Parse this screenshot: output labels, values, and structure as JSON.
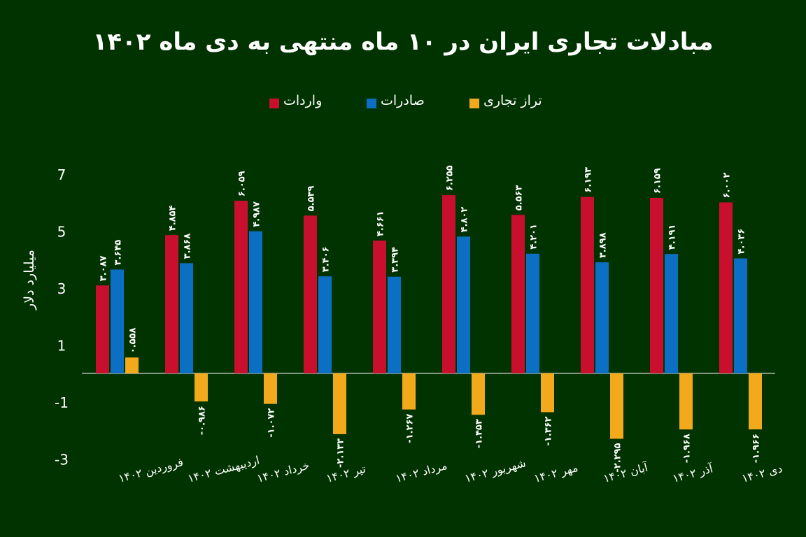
{
  "colors": {
    "background": "#013300",
    "imports": "#c8102e",
    "exports": "#0b6fc4",
    "balance": "#f2a91c",
    "text": "#ffffff"
  },
  "chart_data": {
    "type": "bar",
    "title": "مبادلات تجاری ایران در ۱۰ ماه منتهی به دی ماه ۱۴۰۲",
    "ylabel": "میلیارد دلار",
    "xlabel": "",
    "ylim": [
      -3,
      7
    ],
    "yticks": [
      "7",
      "5",
      "3",
      "1",
      "-1",
      "-3"
    ],
    "ytick_values": [
      7,
      5,
      3,
      1,
      -1,
      -3
    ],
    "legend_position": "top-center",
    "grid": false,
    "categories": [
      "فروردین ۱۴۰۲",
      "اردیبهشت ۱۴۰۲",
      "خرداد ۱۴۰۲",
      "تیر ۱۴۰۲",
      "مرداد ۱۴۰۲",
      "شهریور ۱۴۰۲",
      "مهر ۱۴۰۲",
      "آبان ۱۴۰۲",
      "آذر ۱۴۰۲",
      "دی ۱۴۰۲"
    ],
    "series": [
      {
        "name": "واردات",
        "key": "imports",
        "values": [
          3.087,
          4.854,
          6.059,
          5.539,
          4.661,
          6.255,
          5.563,
          6.193,
          6.159,
          6.002
        ],
        "labels": [
          "۳.۰۸۷",
          "۴.۸۵۴",
          "۶.۰۵۹",
          "۵.۵۳۹",
          "۴.۶۶۱",
          "۶.۲۵۵",
          "۵.۵۶۳",
          "۶.۱۹۳",
          "۶.۱۵۹",
          "۶.۰۰۲"
        ]
      },
      {
        "name": "صادرات",
        "key": "exports",
        "values": [
          3.645,
          3.868,
          4.987,
          3.406,
          3.394,
          4.802,
          4.201,
          3.898,
          4.191,
          4.036
        ],
        "labels": [
          "۳.۶۴۵",
          "۳.۸۶۸",
          "۴.۹۸۷",
          "۳.۴۰۶",
          "۳.۳۹۴",
          "۴.۸۰۲",
          "۴.۲۰۱",
          "۳.۸۹۸",
          "۴.۱۹۱",
          "۴.۰۳۶"
        ]
      },
      {
        "name": "تراز تجاری",
        "key": "balance",
        "values": [
          0.558,
          -0.986,
          -1.072,
          -2.133,
          -1.267,
          -1.453,
          -1.362,
          -2.295,
          -1.968,
          -1.966
        ],
        "labels": [
          "۰.۵۵۸",
          "-۰.۹۸۶",
          "-۱.۰۷۲",
          "-۲.۱۳۳",
          "-۱.۲۶۷",
          "-۱.۴۵۳",
          "-۱.۳۶۲",
          "-۲.۲۹۵",
          "-۱.۹۶۸",
          "-۱.۹۶۶"
        ]
      }
    ]
  }
}
